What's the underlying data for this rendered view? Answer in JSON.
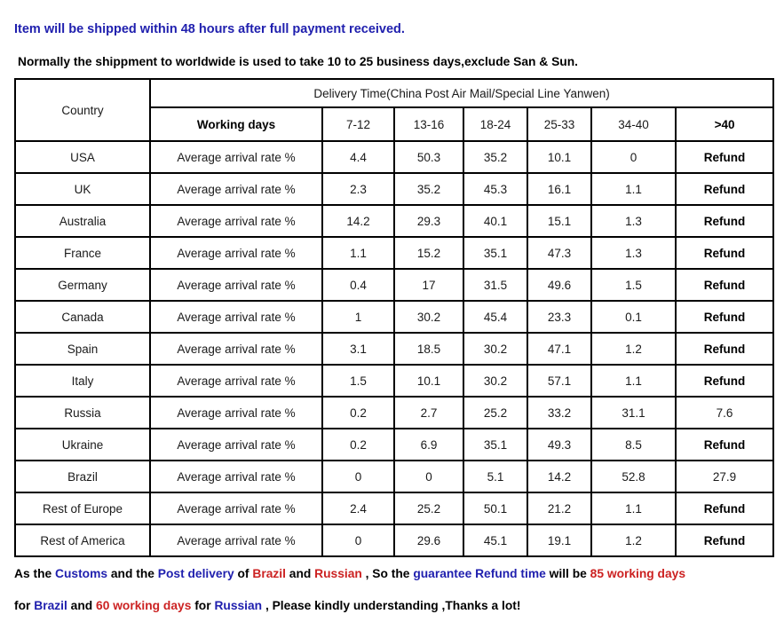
{
  "colors": {
    "blue": "#1f1fae",
    "red": "#cc2222",
    "table_border": "#000000"
  },
  "notes_top": {
    "line1": "Item will be shipped within 48 hours after full payment received.",
    "line2": "Normally the shippment to worldwide is used to take 10 to 25 business days,exclude San & Sun."
  },
  "table": {
    "corner_label": "Country",
    "title": "Delivery Time(China Post Air Mail/Special Line Yanwen)",
    "subheaders": [
      "Working days",
      "7-12",
      "13-16",
      "18-24",
      "25-33",
      "34-40",
      ">40"
    ],
    "row_label": "Average arrival rate %",
    "rows": [
      {
        "country": "USA",
        "values": [
          "4.4",
          "50.3",
          "35.2",
          "10.1",
          "0",
          "Refund"
        ]
      },
      {
        "country": "UK",
        "values": [
          "2.3",
          "35.2",
          "45.3",
          "16.1",
          "1.1",
          "Refund"
        ]
      },
      {
        "country": "Australia",
        "values": [
          "14.2",
          "29.3",
          "40.1",
          "15.1",
          "1.3",
          "Refund"
        ]
      },
      {
        "country": "France",
        "values": [
          "1.1",
          "15.2",
          "35.1",
          "47.3",
          "1.3",
          "Refund"
        ]
      },
      {
        "country": "Germany",
        "values": [
          "0.4",
          "17",
          "31.5",
          "49.6",
          "1.5",
          "Refund"
        ]
      },
      {
        "country": "Canada",
        "values": [
          "1",
          "30.2",
          "45.4",
          "23.3",
          "0.1",
          "Refund"
        ]
      },
      {
        "country": "Spain",
        "values": [
          "3.1",
          "18.5",
          "30.2",
          "47.1",
          "1.2",
          "Refund"
        ]
      },
      {
        "country": "Italy",
        "values": [
          "1.5",
          "10.1",
          "30.2",
          "57.1",
          "1.1",
          "Refund"
        ]
      },
      {
        "country": "Russia",
        "values": [
          "0.2",
          "2.7",
          "25.2",
          "33.2",
          "31.1",
          "7.6"
        ]
      },
      {
        "country": "Ukraine",
        "values": [
          "0.2",
          "6.9",
          "35.1",
          "49.3",
          "8.5",
          "Refund"
        ]
      },
      {
        "country": "Brazil",
        "values": [
          "0",
          "0",
          "5.1",
          "14.2",
          "52.8",
          "27.9"
        ]
      },
      {
        "country": "Rest of Europe",
        "values": [
          "2.4",
          "25.2",
          "50.1",
          "21.2",
          "1.1",
          "Refund"
        ]
      },
      {
        "country": "Rest of America",
        "values": [
          "0",
          "29.6",
          "45.1",
          "19.1",
          "1.2",
          "Refund"
        ]
      }
    ]
  },
  "notes_bottom": {
    "line1": [
      {
        "text": "As the ",
        "color": "black"
      },
      {
        "text": "Customs",
        "color": "blue"
      },
      {
        "text": " and the ",
        "color": "black"
      },
      {
        "text": "Post delivery",
        "color": "blue"
      },
      {
        "text": " of ",
        "color": "black"
      },
      {
        "text": "Brazil",
        "color": "red"
      },
      {
        "text": " and ",
        "color": "black"
      },
      {
        "text": "Russian",
        "color": "red"
      },
      {
        "text": " , So the ",
        "color": "black"
      },
      {
        "text": "guarantee Refund time",
        "color": "blue"
      },
      {
        "text": " will be ",
        "color": "black"
      },
      {
        "text": "85 working days",
        "color": "red"
      }
    ],
    "line2": [
      {
        "text": "for ",
        "color": "black"
      },
      {
        "text": "Brazil",
        "color": "blue"
      },
      {
        "text": " and ",
        "color": "black"
      },
      {
        "text": "60 working days",
        "color": "red"
      },
      {
        "text": " for ",
        "color": "black"
      },
      {
        "text": "Russian",
        "color": "blue"
      },
      {
        "text": " , Please kindly understanding ,Thanks a lot!",
        "color": "black"
      }
    ]
  }
}
